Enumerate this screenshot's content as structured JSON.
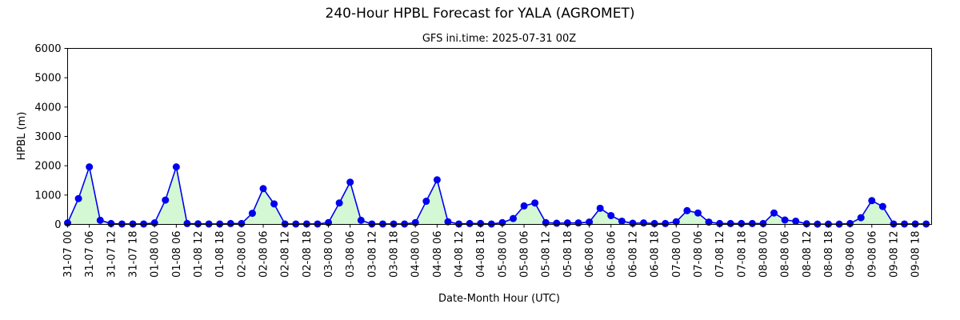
{
  "chart_data": {
    "type": "line",
    "title": "240-Hour HPBL Forecast for YALA (AGROMET)",
    "subtitle": "GFS ini.time: 2025-07-31 00Z",
    "xlabel": "Date-Month Hour (UTC)",
    "ylabel": "HPBL (m)",
    "ylim": [
      0,
      6000
    ],
    "yticks": [
      0,
      1000,
      2000,
      3000,
      4000,
      5000,
      6000
    ],
    "xlim": [
      0,
      79.5
    ],
    "x_step_hours": 3,
    "xtick_labels": [
      "31-07 00",
      "31-07 06",
      "31-07 12",
      "31-07 18",
      "01-08 00",
      "01-08 06",
      "01-08 12",
      "01-08 18",
      "02-08 00",
      "02-08 06",
      "02-08 12",
      "02-08 18",
      "03-08 00",
      "03-08 06",
      "03-08 12",
      "03-08 18",
      "04-08 00",
      "04-08 06",
      "04-08 12",
      "04-08 18",
      "05-08 00",
      "05-08 06",
      "05-08 12",
      "05-08 18",
      "06-08 00",
      "06-08 06",
      "06-08 12",
      "06-08 18",
      "07-08 00",
      "07-08 06",
      "07-08 12",
      "07-08 18",
      "08-08 00",
      "08-08 06",
      "08-08 12",
      "08-08 18",
      "09-08 00",
      "09-08 06",
      "09-08 12",
      "09-08 18"
    ],
    "grid": false,
    "line_color": "#0000ee",
    "fill_color": "#d4f7d4",
    "series": [
      {
        "values": [
          50,
          880,
          1960,
          140,
          30,
          15,
          15,
          15,
          50,
          830,
          1960,
          30,
          20,
          15,
          15,
          30,
          30,
          380,
          1220,
          700,
          15,
          15,
          15,
          15,
          60,
          730,
          1440,
          140,
          15,
          15,
          15,
          15,
          60,
          790,
          1520,
          90,
          15,
          30,
          30,
          15,
          60,
          200,
          630,
          730,
          60,
          40,
          50,
          50,
          80,
          550,
          300,
          110,
          40,
          50,
          30,
          30,
          90,
          470,
          390,
          80,
          30,
          30,
          30,
          30,
          30,
          390,
          150,
          110,
          20,
          10,
          10,
          10,
          30,
          230,
          810,
          610,
          15,
          15,
          15,
          15
        ]
      }
    ]
  }
}
